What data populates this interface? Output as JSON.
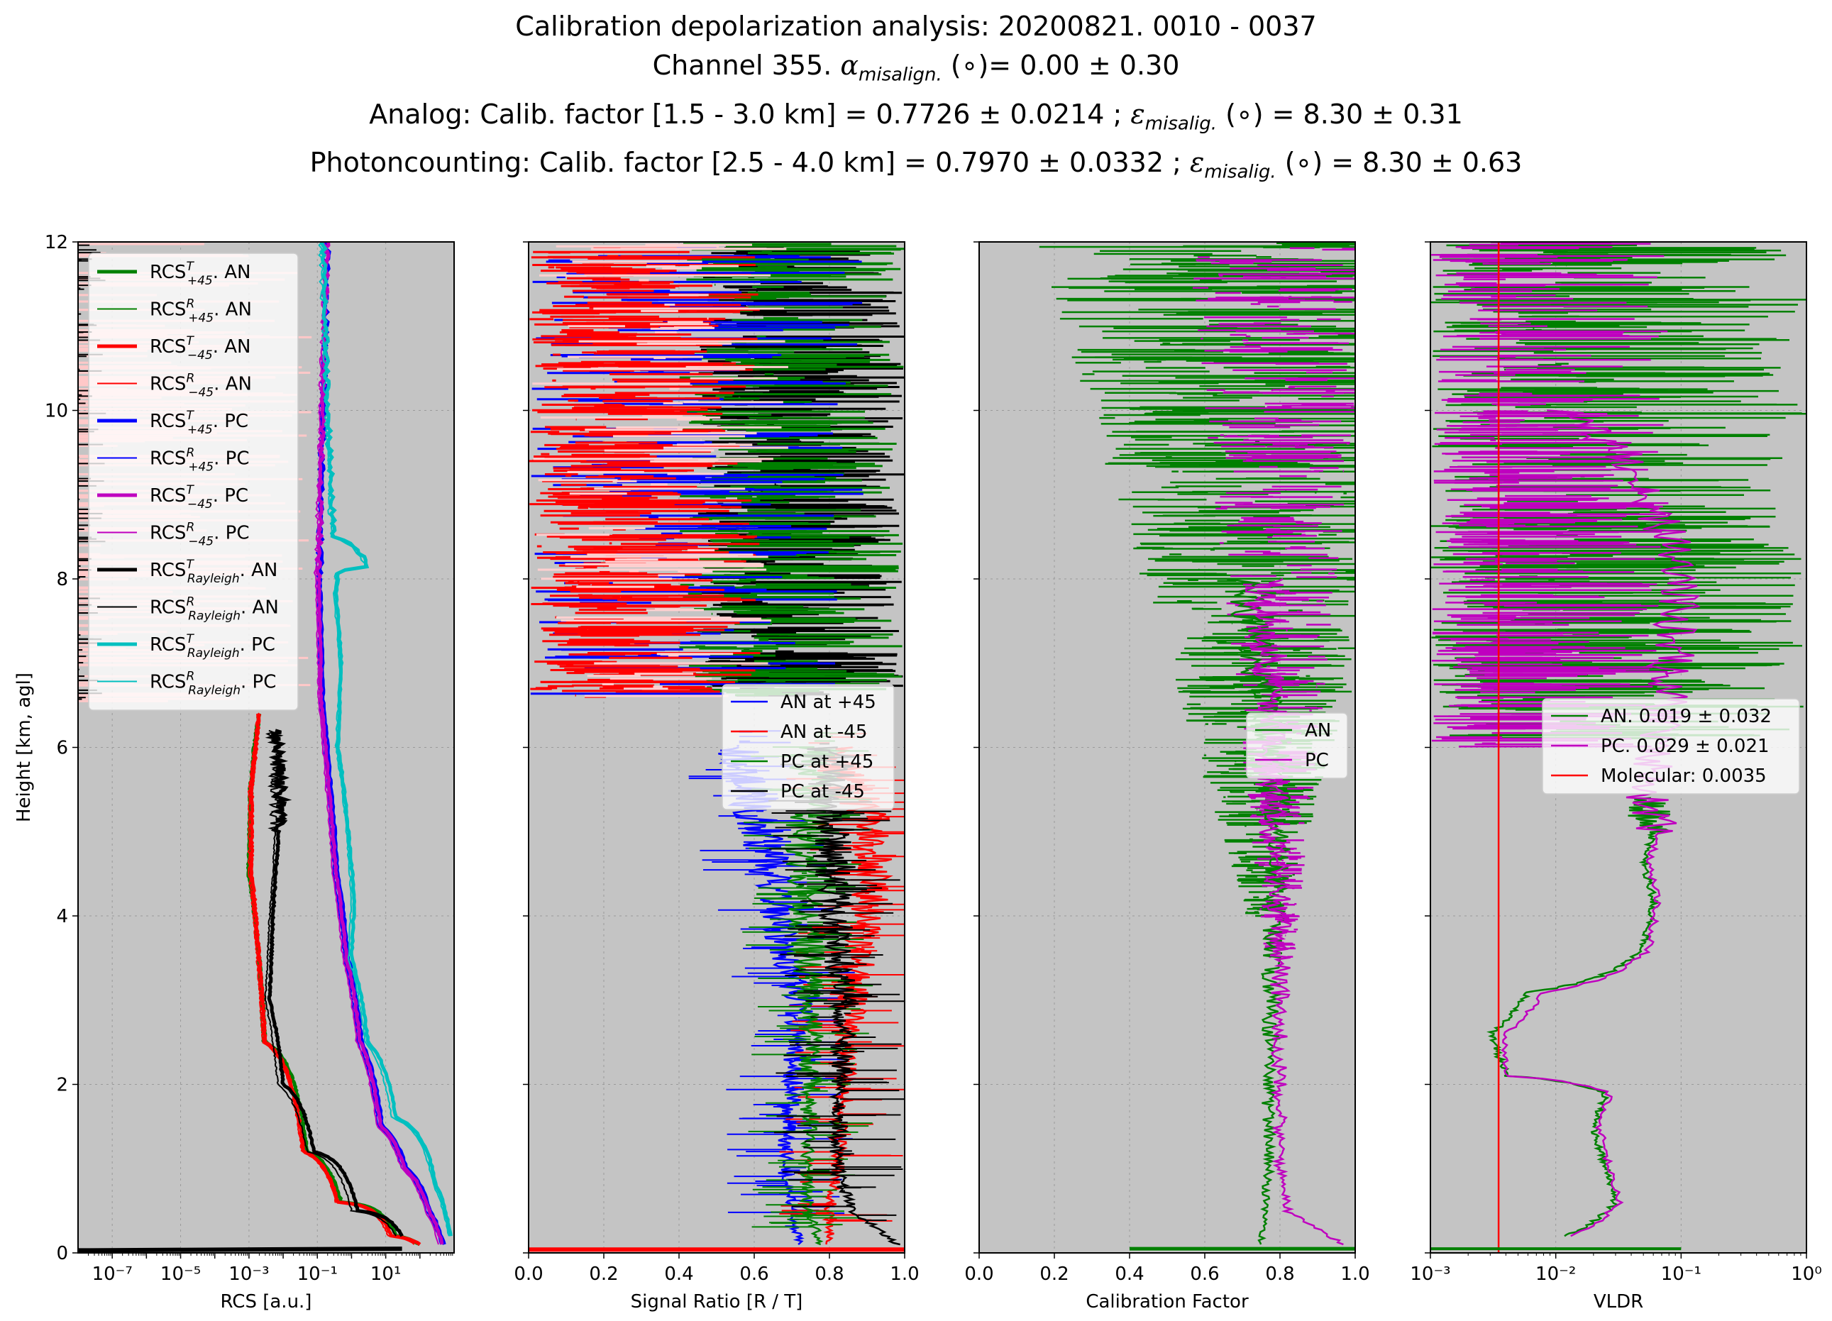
{
  "figure": {
    "title_lines": [
      "Calibration depolarization analysis: 20200821. 0010 - 0037",
      "Channel 355. α_misalign. (∘)= 0.00 ± 0.30",
      "Analog: Calib. factor [1.5 - 3.0 km] = 0.7726 ± 0.0214 ; ε_misalig. (∘) = 8.30 ± 0.31",
      "Photoncounting: Calib. factor [2.5 - 4.0 km] = 0.7970 ± 0.0332 ; ε_misalig. (∘) = 8.30 ± 0.63"
    ],
    "title_parts": {
      "line1": "Calibration depolarization analysis: 20200821. 0010 - 0037",
      "line2_a": "Channel 355. ",
      "line2_sym": "α",
      "line2_sub": "misalign.",
      "line2_b": " (∘)= 0.00 ± 0.30",
      "line3_a": "Analog: Calib. factor [1.5 - 3.0 km] = 0.7726 ± 0.0214 ; ",
      "line3_sym": "ε",
      "line3_sub": "misalig.",
      "line3_b": " (∘) = 8.30 ± 0.31",
      "line4_a": "Photoncounting: Calib. factor [2.5 - 4.0 km] = 0.7970 ± 0.0332 ; ",
      "line4_sym": "ε",
      "line4_sub": "misalig.",
      "line4_b": " (∘) = 8.30 ± 0.63"
    },
    "colors": {
      "axes_bg": "#c4c4c4",
      "green": "#008000",
      "red": "#ff0000",
      "blue": "#0000ff",
      "magenta": "#bf00bf",
      "black": "#000000",
      "cyan": "#00bfbf",
      "pink": "#ffc8c8"
    }
  },
  "chart_data": [
    {
      "type": "line",
      "name": "rcs",
      "xlabel": "RCS [a.u.]",
      "ylabel": "Height [km, agl]",
      "xscale": "log",
      "xlim": [
        1e-08,
        1000
      ],
      "ylim": [
        0,
        12
      ],
      "grid": true,
      "legend_position": "upper-left",
      "x_ticks": [
        "10⁻⁷",
        "10⁻⁵",
        "10⁻³",
        "10⁻¹",
        "10¹"
      ],
      "y_ticks": [
        "0",
        "2",
        "4",
        "6",
        "8",
        "10",
        "12"
      ],
      "legend": [
        {
          "base": "RCS",
          "sup": "T",
          "sub": "+45",
          "tail": ". AN"
        },
        {
          "base": "RCS",
          "sup": "R",
          "sub": "+45",
          "tail": ". AN"
        },
        {
          "base": "RCS",
          "sup": "T",
          "sub": "−45",
          "tail": ". AN"
        },
        {
          "base": "RCS",
          "sup": "R",
          "sub": "−45",
          "tail": ". AN"
        },
        {
          "base": "RCS",
          "sup": "T",
          "sub": "+45",
          "tail": ". PC"
        },
        {
          "base": "RCS",
          "sup": "R",
          "sub": "+45",
          "tail": ". PC"
        },
        {
          "base": "RCS",
          "sup": "T",
          "sub": "−45",
          "tail": ". PC"
        },
        {
          "base": "RCS",
          "sup": "R",
          "sub": "−45",
          "tail": ". PC"
        },
        {
          "base": "RCS",
          "sup": "T",
          "sub": "Rayleigh",
          "tail": ". AN"
        },
        {
          "base": "RCS",
          "sup": "R",
          "sub": "Rayleigh",
          "tail": ". AN"
        },
        {
          "base": "RCS",
          "sup": "T",
          "sub": "Rayleigh",
          "tail": ". PC"
        },
        {
          "base": "RCS",
          "sup": "R",
          "sub": "Rayleigh",
          "tail": ". PC"
        }
      ],
      "series": [
        {
          "color": "green",
          "width": 5,
          "x": [
            100,
            20,
            0.5,
            0.05,
            0.003,
            0.002,
            0.001,
            0.0012,
            0.0015,
            0.002
          ],
          "y": [
            0.1,
            0.2,
            0.6,
            1.2,
            2.5,
            3.5,
            4.5,
            5.5,
            6.0,
            6.4
          ]
        },
        {
          "color": "green",
          "width": 2,
          "x": [
            80,
            15,
            0.4,
            0.04,
            0.0025,
            0.0018,
            0.0009,
            0.001,
            0.0013,
            0.0018
          ],
          "y": [
            0.1,
            0.2,
            0.6,
            1.2,
            2.5,
            3.5,
            4.5,
            5.5,
            6.0,
            6.4
          ]
        },
        {
          "color": "red",
          "width": 5,
          "x": [
            100,
            15,
            0.4,
            0.04,
            0.003,
            0.002,
            0.0012,
            0.0012,
            0.0016,
            0.002
          ],
          "y": [
            0.1,
            0.2,
            0.6,
            1.2,
            2.5,
            3.5,
            4.5,
            5.5,
            6.0,
            6.4
          ]
        },
        {
          "color": "red",
          "width": 2,
          "x": [
            70,
            12,
            0.35,
            0.035,
            0.0025,
            0.0017,
            0.001,
            0.001,
            0.0014,
            0.0018
          ],
          "y": [
            0.1,
            0.2,
            0.6,
            1.2,
            2.5,
            3.5,
            4.5,
            5.5,
            6.0,
            6.4
          ]
        },
        {
          "color": "blue",
          "width": 5,
          "x": [
            500,
            200,
            40,
            8,
            2,
            0.8,
            0.4,
            0.25,
            0.15,
            0.12,
            0.15,
            0.2
          ],
          "y": [
            0.1,
            0.5,
            1.0,
            1.5,
            2.5,
            3.5,
            4.5,
            5.5,
            6.5,
            8.0,
            10.0,
            12.0
          ]
        },
        {
          "color": "blue",
          "width": 2,
          "x": [
            400,
            150,
            30,
            6,
            1.5,
            0.6,
            0.3,
            0.2,
            0.12,
            0.1,
            0.13,
            0.18
          ],
          "y": [
            0.1,
            0.5,
            1.0,
            1.5,
            2.5,
            3.5,
            4.5,
            5.5,
            6.5,
            8.0,
            10.0,
            12.0
          ]
        },
        {
          "color": "magenta",
          "width": 5,
          "x": [
            450,
            180,
            35,
            7,
            1.8,
            0.7,
            0.35,
            0.22,
            0.13,
            0.11,
            0.14,
            0.19
          ],
          "y": [
            0.1,
            0.5,
            1.0,
            1.5,
            2.5,
            3.5,
            4.5,
            5.5,
            6.5,
            8.0,
            10.0,
            12.0
          ]
        },
        {
          "color": "magenta",
          "width": 2,
          "x": [
            350,
            140,
            28,
            5.5,
            1.4,
            0.55,
            0.28,
            0.18,
            0.11,
            0.09,
            0.12,
            0.17
          ],
          "y": [
            0.1,
            0.5,
            1.0,
            1.5,
            2.5,
            3.5,
            4.5,
            5.5,
            6.5,
            8.0,
            10.0,
            12.0
          ]
        },
        {
          "color": "black",
          "width": 5,
          "x": [
            30,
            1.5,
            0.08,
            0.01,
            0.004,
            0.005,
            0.006,
            0.008,
            0.008,
            0.006
          ],
          "y": [
            0.2,
            0.5,
            1.2,
            2.0,
            3.0,
            4.0,
            4.5,
            5.2,
            5.8,
            6.2
          ]
        },
        {
          "color": "black",
          "width": 2,
          "x": [
            20,
            1.0,
            0.05,
            0.007,
            0.003,
            0.004,
            0.005,
            0.006,
            0.006,
            0.005
          ],
          "y": [
            0.2,
            0.5,
            1.2,
            2.0,
            3.0,
            4.0,
            4.5,
            5.2,
            5.8,
            6.2
          ]
        },
        {
          "color": "cyan",
          "width": 5,
          "x": [
            800,
            300,
            20,
            3,
            1.0,
            1.2,
            0.8,
            0.4,
            0.5,
            0.35,
            0.4,
            0.35,
            3.0,
            0.3,
            0.2,
            0.15
          ],
          "y": [
            0.2,
            0.8,
            1.6,
            2.5,
            3.5,
            4.2,
            5.0,
            6.0,
            7.0,
            7.8,
            8.0,
            8.1,
            8.15,
            8.5,
            10.0,
            12.0
          ]
        },
        {
          "color": "cyan",
          "width": 2,
          "x": [
            700,
            250,
            15,
            2.5,
            0.8,
            1.0,
            0.7,
            0.35,
            0.45,
            0.3,
            0.35,
            0.3,
            2.5,
            0.25,
            0.18,
            0.12
          ],
          "y": [
            0.2,
            0.8,
            1.6,
            2.5,
            3.5,
            4.2,
            5.0,
            6.0,
            7.0,
            7.8,
            8.0,
            8.1,
            8.15,
            8.5,
            10.0,
            12.0
          ]
        }
      ]
    },
    {
      "type": "line",
      "name": "signal-ratio",
      "xlabel": "Signal Ratio [R / T]",
      "xlim": [
        0,
        1
      ],
      "ylim": [
        0,
        12
      ],
      "grid": true,
      "legend_position": "center-right",
      "x_ticks": [
        "0.0",
        "0.2",
        "0.4",
        "0.6",
        "0.8",
        "1.0"
      ],
      "legend": [
        "AN at +45",
        "AN at -45",
        "PC at +45",
        "PC at -45"
      ],
      "series": [
        {
          "name": "AN at +45",
          "color": "blue",
          "x": [
            0.72,
            0.7,
            0.68,
            0.7,
            0.72,
            0.66,
            0.62,
            0.56
          ],
          "y": [
            0.1,
            0.5,
            1.0,
            2.0,
            3.0,
            4.0,
            5.0,
            6.0
          ]
        },
        {
          "name": "AN at -45",
          "color": "red",
          "x": [
            0.8,
            0.8,
            0.82,
            0.84,
            0.86,
            0.9,
            0.92,
            0.8
          ],
          "y": [
            0.1,
            0.5,
            1.0,
            2.0,
            3.0,
            4.0,
            5.0,
            6.0
          ]
        },
        {
          "name": "PC at +45",
          "color": "green",
          "x": [
            0.78,
            0.74,
            0.74,
            0.75,
            0.75,
            0.74,
            0.74,
            0.76
          ],
          "y": [
            0.1,
            0.5,
            1.0,
            2.0,
            3.0,
            4.0,
            5.0,
            6.0
          ]
        },
        {
          "name": "PC at -45",
          "color": "black",
          "x": [
            0.98,
            0.86,
            0.82,
            0.83,
            0.84,
            0.82,
            0.81,
            0.8
          ],
          "y": [
            0.1,
            0.5,
            1.0,
            2.0,
            3.0,
            4.0,
            5.0,
            6.0
          ]
        }
      ]
    },
    {
      "type": "line",
      "name": "calibration-factor",
      "xlabel": "Calibration Factor",
      "xlim": [
        0,
        1
      ],
      "ylim": [
        0,
        12
      ],
      "grid": true,
      "legend_position": "center-right",
      "x_ticks": [
        "0.0",
        "0.2",
        "0.4",
        "0.6",
        "0.8",
        "1.0"
      ],
      "legend": [
        "AN",
        "PC"
      ],
      "series": [
        {
          "name": "AN",
          "color": "green",
          "x": [
            0.75,
            0.76,
            0.77,
            0.77,
            0.78,
            0.78,
            0.8,
            0.78,
            0.7
          ],
          "y": [
            0.1,
            0.5,
            1.0,
            2.0,
            3.0,
            4.0,
            5.0,
            6.0,
            8.0
          ]
        },
        {
          "name": "PC",
          "color": "magenta",
          "x": [
            0.97,
            0.82,
            0.8,
            0.8,
            0.8,
            0.8,
            0.78,
            0.78,
            0.76
          ],
          "y": [
            0.1,
            0.5,
            1.0,
            2.0,
            3.0,
            4.0,
            5.0,
            6.0,
            8.0
          ]
        }
      ]
    },
    {
      "type": "line",
      "name": "vldr",
      "xlabel": "VLDR",
      "xscale": "log",
      "xlim": [
        0.001,
        1
      ],
      "ylim": [
        0,
        12
      ],
      "grid": true,
      "legend_position": "center-right",
      "x_ticks": [
        "10⁻³",
        "10⁻²",
        "10⁻¹",
        "10⁰"
      ],
      "legend": [
        "AN. 0.019 ± 0.032",
        "PC. 0.029 ± 0.021",
        "Molecular: 0.0035"
      ],
      "series": [
        {
          "name": "AN. 0.019 ± 0.032",
          "color": "green",
          "x": [
            0.012,
            0.03,
            0.025,
            0.02,
            0.025,
            0.004,
            0.003,
            0.006,
            0.05,
            0.06,
            0.05,
            0.06,
            0.05
          ],
          "y": [
            0.2,
            0.6,
            1.0,
            1.5,
            1.9,
            2.1,
            2.6,
            3.1,
            3.6,
            4.2,
            4.6,
            5.0,
            5.4
          ]
        },
        {
          "name": "PC. 0.029 ± 0.021",
          "color": "magenta",
          "x": [
            0.014,
            0.032,
            0.027,
            0.022,
            0.027,
            0.004,
            0.004,
            0.008,
            0.055,
            0.065,
            0.055,
            0.065,
            0.055,
            0.1,
            0.01
          ],
          "y": [
            0.2,
            0.6,
            1.0,
            1.5,
            1.9,
            2.1,
            2.6,
            3.1,
            3.6,
            4.2,
            4.6,
            5.0,
            5.4,
            8.0,
            10.0
          ]
        },
        {
          "name": "Molecular: 0.0035",
          "color": "red",
          "x": [
            0.0035,
            0.0035
          ],
          "y": [
            0,
            12
          ]
        }
      ]
    }
  ]
}
